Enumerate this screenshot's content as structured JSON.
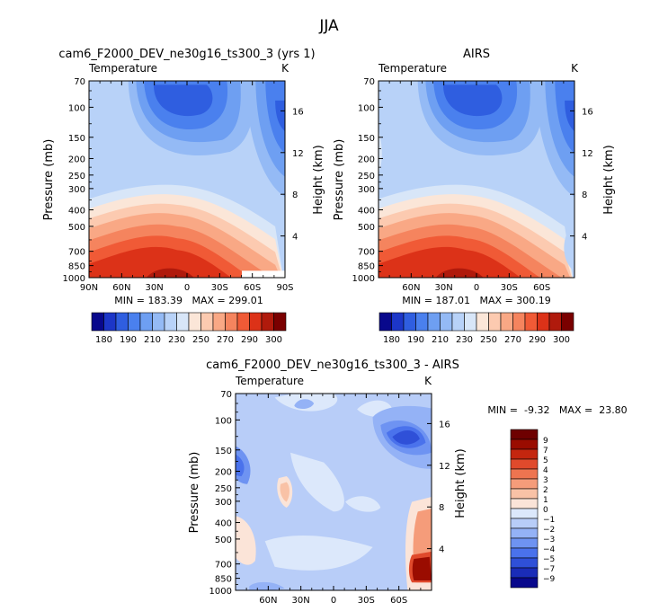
{
  "main_title": "JJA",
  "colors": {
    "abs_palette": [
      "#08088c",
      "#1c36c8",
      "#2f5ee0",
      "#4a80ee",
      "#6e9ff2",
      "#94baf5",
      "#b8d2f8",
      "#d8e6f8",
      "#fbe6d8",
      "#fccab0",
      "#f9a885",
      "#f5845e",
      "#f05a36",
      "#dc3218",
      "#b01a0c",
      "#7a0000"
    ],
    "diff_palette": [
      "#08088c",
      "#1a2cb8",
      "#2f50d8",
      "#4a72ec",
      "#6e93f2",
      "#94b2f6",
      "#b8cdf8",
      "#dce8fb",
      "#fbe4d8",
      "#f9c2a6",
      "#f59c7a",
      "#ee7450",
      "#e04a2c",
      "#c4260f",
      "#9a0c00",
      "#6e0000"
    ]
  },
  "chart_data": [
    {
      "type": "heatmap",
      "title": "cam6_F2000_DEV_ne30g16_ts300_3 (yrs 1)",
      "subtitle_left": "Temperature",
      "subtitle_right": "K",
      "ylabel": "Pressure (mb)",
      "ylabel_right": "Height (km)",
      "x_ticks": [
        "90N",
        "60N",
        "30N",
        "0",
        "30S",
        "60S",
        "90S"
      ],
      "x_tick_values": [
        90,
        60,
        30,
        0,
        -30,
        -60,
        -90
      ],
      "xlim": [
        90,
        -90
      ],
      "y_ticks": [
        "70",
        "100",
        "150",
        "200",
        "250",
        "300",
        "400",
        "500",
        "700",
        "850",
        "1000"
      ],
      "y_tick_values": [
        70,
        100,
        150,
        200,
        250,
        300,
        400,
        500,
        700,
        850,
        1000
      ],
      "ylim": [
        70,
        1000
      ],
      "y_log": true,
      "height_ticks": [
        "4",
        "8",
        "12",
        "16"
      ],
      "height_tick_values": [
        4,
        8,
        12,
        16
      ],
      "min_max": "MIN = 183.39   MAX = 299.01",
      "levels": [
        180,
        185,
        190,
        200,
        210,
        220,
        230,
        240,
        250,
        260,
        270,
        280,
        290,
        295,
        300
      ]
    },
    {
      "type": "heatmap",
      "title": "AIRS",
      "subtitle_left": "Temperature",
      "subtitle_right": "K",
      "ylabel": "Pressure (mb)",
      "ylabel_right": "Height (km)",
      "x_ticks": [
        "60N",
        "30N",
        "0",
        "30S",
        "60S"
      ],
      "x_tick_values": [
        60,
        30,
        0,
        -30,
        -60
      ],
      "xlim": [
        90,
        -90
      ],
      "y_ticks": [
        "70",
        "100",
        "150",
        "200",
        "250",
        "300",
        "400",
        "500",
        "700",
        "850",
        "1000"
      ],
      "y_tick_values": [
        70,
        100,
        150,
        200,
        250,
        300,
        400,
        500,
        700,
        850,
        1000
      ],
      "ylim": [
        70,
        1000
      ],
      "y_log": true,
      "height_ticks": [
        "4",
        "8",
        "12",
        "16"
      ],
      "height_tick_values": [
        4,
        8,
        12,
        16
      ],
      "min_max": "MIN = 187.01   MAX = 300.19"
    },
    {
      "type": "heatmap",
      "title": "cam6_F2000_DEV_ne30g16_ts300_3 - AIRS",
      "subtitle_left": "Temperature",
      "subtitle_right": "K",
      "ylabel": "Pressure (mb)",
      "ylabel_right": "Height (km)",
      "x_ticks": [
        "60N",
        "30N",
        "0",
        "30S",
        "60S"
      ],
      "x_tick_values": [
        60,
        30,
        0,
        -30,
        -60
      ],
      "xlim": [
        90,
        -90
      ],
      "y_ticks": [
        "70",
        "100",
        "150",
        "200",
        "250",
        "300",
        "400",
        "500",
        "700",
        "850",
        "1000"
      ],
      "y_tick_values": [
        70,
        100,
        150,
        200,
        250,
        300,
        400,
        500,
        700,
        850,
        1000
      ],
      "ylim": [
        70,
        1000
      ],
      "y_log": true,
      "height_ticks": [
        "4",
        "8",
        "12",
        "16"
      ],
      "height_tick_values": [
        4,
        8,
        12,
        16
      ],
      "min_max": "MIN =  -9.32   MAX =  23.80",
      "levels": [
        -9,
        -7,
        -5,
        -4,
        -3,
        -2,
        -1,
        0,
        1,
        2,
        3,
        4,
        5,
        7,
        9
      ]
    }
  ],
  "colorbar_abs": {
    "labels": [
      "180",
      "190",
      "210",
      "230",
      "250",
      "270",
      "290",
      "300"
    ]
  },
  "colorbar_diff": {
    "labels": [
      "9",
      "7",
      "5",
      "4",
      "3",
      "2",
      "1",
      "0",
      "−1",
      "−2",
      "−3",
      "−4",
      "−5",
      "−7",
      "−9"
    ]
  }
}
